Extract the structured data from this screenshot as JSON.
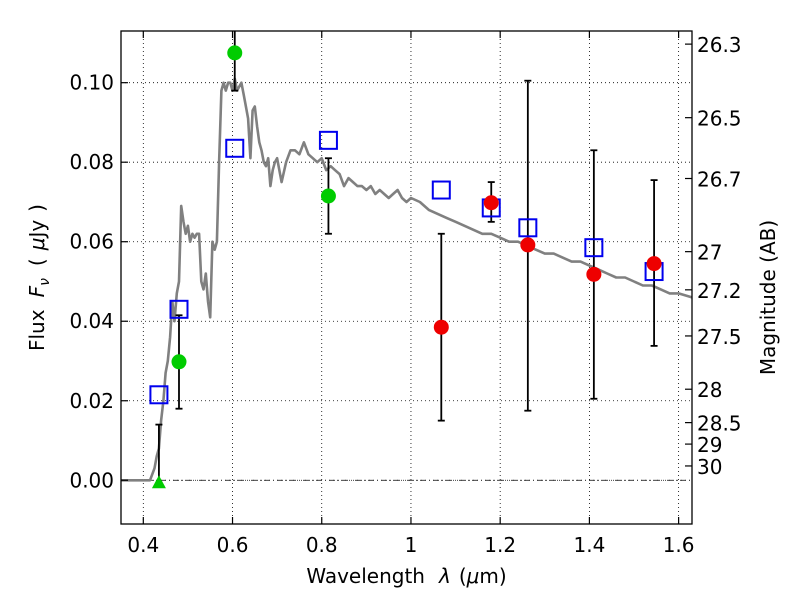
{
  "chart_data": {
    "type": "scatter",
    "xlabel_prefix": "Wavelength",
    "xlabel_symbol": "λ",
    "xlabel_unit_open": "(",
    "xlabel_unit_mu": "μ",
    "xlabel_unit_rest": "m)",
    "ylabel_left_prefix": "Flux",
    "ylabel_left_F": "F",
    "ylabel_left_nu": "ν",
    "ylabel_left_open": "(",
    "ylabel_left_mu": "μ",
    "ylabel_left_unit": "Jy",
    "ylabel_left_close": ")",
    "ylabel_right": "Magnitude (AB)",
    "xlim": [
      0.35,
      1.63
    ],
    "ylim": [
      -0.011,
      0.113
    ],
    "x_ticks": [
      {
        "value": 0.4,
        "label": "0.4"
      },
      {
        "value": 0.6,
        "label": "0.6"
      },
      {
        "value": 0.8,
        "label": "0.8"
      },
      {
        "value": 1.0,
        "label": "1"
      },
      {
        "value": 1.2,
        "label": "1.2"
      },
      {
        "value": 1.4,
        "label": "1.4"
      },
      {
        "value": 1.6,
        "label": "1.6"
      }
    ],
    "y_ticks": [
      {
        "value": 0.0,
        "label": "0.00"
      },
      {
        "value": 0.02,
        "label": "0.02"
      },
      {
        "value": 0.04,
        "label": "0.04"
      },
      {
        "value": 0.06,
        "label": "0.06"
      },
      {
        "value": 0.08,
        "label": "0.08"
      },
      {
        "value": 0.1,
        "label": "0.10"
      }
    ],
    "right_ticks": [
      {
        "label": "26.3",
        "flux": 0.1097
      },
      {
        "label": "26.5",
        "flux": 0.0912
      },
      {
        "label": "26.7",
        "flux": 0.0759
      },
      {
        "label": "27",
        "flux": 0.0575
      },
      {
        "label": "27.2",
        "flux": 0.0479
      },
      {
        "label": "27.5",
        "flux": 0.0363
      },
      {
        "label": "28",
        "flux": 0.0229
      },
      {
        "label": "28.5",
        "flux": 0.0145
      },
      {
        "label": "29",
        "flux": 0.0091
      },
      {
        "label": "30",
        "flux": 0.0036
      }
    ],
    "model_spectrum": {
      "name": "SED model",
      "color": "#808080",
      "x": [
        0.35,
        0.415,
        0.425,
        0.43,
        0.435,
        0.44,
        0.445,
        0.45,
        0.455,
        0.46,
        0.465,
        0.47,
        0.475,
        0.48,
        0.485,
        0.49,
        0.495,
        0.5,
        0.505,
        0.51,
        0.515,
        0.52,
        0.525,
        0.53,
        0.535,
        0.54,
        0.545,
        0.55,
        0.555,
        0.56,
        0.565,
        0.57,
        0.575,
        0.58,
        0.585,
        0.59,
        0.595,
        0.6,
        0.605,
        0.61,
        0.615,
        0.62,
        0.625,
        0.63,
        0.635,
        0.64,
        0.645,
        0.65,
        0.655,
        0.66,
        0.665,
        0.67,
        0.675,
        0.68,
        0.685,
        0.69,
        0.695,
        0.7,
        0.71,
        0.72,
        0.73,
        0.74,
        0.75,
        0.76,
        0.77,
        0.78,
        0.79,
        0.8,
        0.81,
        0.82,
        0.83,
        0.84,
        0.85,
        0.86,
        0.87,
        0.88,
        0.89,
        0.9,
        0.91,
        0.92,
        0.93,
        0.94,
        0.95,
        0.96,
        0.97,
        0.98,
        0.99,
        1.0,
        1.02,
        1.04,
        1.06,
        1.08,
        1.1,
        1.12,
        1.14,
        1.16,
        1.18,
        1.2,
        1.22,
        1.24,
        1.26,
        1.28,
        1.3,
        1.32,
        1.34,
        1.36,
        1.38,
        1.4,
        1.42,
        1.44,
        1.46,
        1.48,
        1.5,
        1.52,
        1.54,
        1.56,
        1.58,
        1.6,
        1.63
      ],
      "y": [
        0.0,
        0.0,
        0.003,
        0.006,
        0.008,
        0.015,
        0.02,
        0.027,
        0.03,
        0.036,
        0.045,
        0.04,
        0.047,
        0.05,
        0.069,
        0.065,
        0.062,
        0.064,
        0.06,
        0.062,
        0.061,
        0.062,
        0.062,
        0.05,
        0.048,
        0.052,
        0.045,
        0.041,
        0.06,
        0.058,
        0.06,
        0.08,
        0.098,
        0.1,
        0.098,
        0.1,
        0.1,
        0.098,
        0.101,
        0.098,
        0.099,
        0.1,
        0.097,
        0.094,
        0.091,
        0.081,
        0.093,
        0.094,
        0.089,
        0.085,
        0.083,
        0.08,
        0.079,
        0.081,
        0.074,
        0.078,
        0.08,
        0.081,
        0.075,
        0.08,
        0.083,
        0.083,
        0.082,
        0.085,
        0.082,
        0.081,
        0.08,
        0.081,
        0.078,
        0.079,
        0.078,
        0.077,
        0.074,
        0.076,
        0.075,
        0.074,
        0.074,
        0.073,
        0.074,
        0.072,
        0.073,
        0.072,
        0.071,
        0.072,
        0.073,
        0.071,
        0.07,
        0.071,
        0.07,
        0.068,
        0.067,
        0.066,
        0.065,
        0.064,
        0.063,
        0.062,
        0.062,
        0.061,
        0.06,
        0.06,
        0.059,
        0.058,
        0.057,
        0.057,
        0.056,
        0.055,
        0.055,
        0.054,
        0.053,
        0.052,
        0.051,
        0.051,
        0.05,
        0.049,
        0.049,
        0.048,
        0.047,
        0.047,
        0.046
      ]
    },
    "series": [
      {
        "name": "model photometry (open squares)",
        "marker": "square-open",
        "color": "#0000ee",
        "points": [
          {
            "x": 0.435,
            "y": 0.0215
          },
          {
            "x": 0.48,
            "y": 0.043
          },
          {
            "x": 0.605,
            "y": 0.0835
          },
          {
            "x": 0.815,
            "y": 0.0855
          },
          {
            "x": 1.068,
            "y": 0.073
          },
          {
            "x": 1.18,
            "y": 0.0685
          },
          {
            "x": 1.262,
            "y": 0.0635
          },
          {
            "x": 1.41,
            "y": 0.0585
          },
          {
            "x": 1.545,
            "y": 0.0525
          }
        ]
      },
      {
        "name": "optical detections (green)",
        "marker": "circle",
        "color": "#00cc00",
        "points": [
          {
            "x": 0.48,
            "y": 0.0298,
            "yerr_low": 0.0118,
            "yerr_high": 0.0117
          },
          {
            "x": 0.605,
            "y": 0.1075,
            "yerr_low": 0.0095,
            "yerr_high": 0.0075
          },
          {
            "x": 0.815,
            "y": 0.0715,
            "yerr_low": 0.0095,
            "yerr_high": 0.0095
          }
        ]
      },
      {
        "name": "optical non-detection (green triangle)",
        "marker": "triangle",
        "color": "#00cc00",
        "points": [
          {
            "x": 0.435,
            "y": -0.0005,
            "yerr_low": 0.0005,
            "yerr_high": 0.0145
          }
        ]
      },
      {
        "name": "near-infrared detections (red)",
        "marker": "circle",
        "color": "#ee0000",
        "points": [
          {
            "x": 1.068,
            "y": 0.0385,
            "yerr_low": 0.0235,
            "yerr_high": 0.0235
          },
          {
            "x": 1.18,
            "y": 0.0698,
            "yerr_low": 0.0048,
            "yerr_high": 0.0052
          },
          {
            "x": 1.262,
            "y": 0.0592,
            "yerr_low": 0.0417,
            "yerr_high": 0.0413
          },
          {
            "x": 1.41,
            "y": 0.0518,
            "yerr_low": 0.0313,
            "yerr_high": 0.0312
          },
          {
            "x": 1.545,
            "y": 0.0545,
            "yerr_low": 0.0207,
            "yerr_high": 0.021
          }
        ]
      }
    ]
  }
}
